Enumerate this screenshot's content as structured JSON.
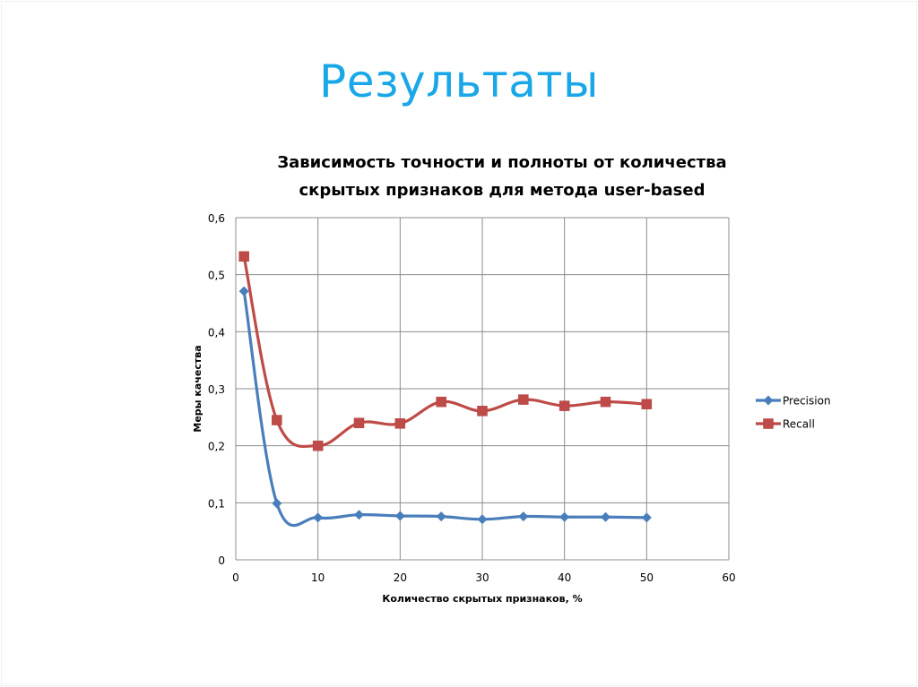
{
  "slide": {
    "title": "Результаты"
  },
  "chart_data": {
    "type": "line",
    "title": "Зависимость точности и полноты от количества скрытых признаков для метода user-based",
    "title_lines": [
      "Зависимость точности и полноты от количества",
      "скрытых признаков для метода user-based"
    ],
    "xlabel": "Количество скрытых признаков, %",
    "ylabel": "Меры качества",
    "xlim": [
      0,
      60
    ],
    "ylim": [
      0,
      0.6
    ],
    "x_ticks": [
      0,
      10,
      20,
      30,
      40,
      50,
      60
    ],
    "x_tick_labels": [
      "0",
      "10",
      "20",
      "30",
      "40",
      "50",
      "60"
    ],
    "y_ticks": [
      0,
      0.1,
      0.2,
      0.3,
      0.4,
      0.5,
      0.6
    ],
    "y_tick_labels": [
      "0",
      "0,1",
      "0,2",
      "0,3",
      "0,4",
      "0,5",
      "0,6"
    ],
    "grid": true,
    "legend_position": "right",
    "x": [
      1,
      5,
      10,
      15,
      20,
      25,
      30,
      35,
      40,
      45,
      50
    ],
    "series": [
      {
        "name": "Precision",
        "color": "#4a7ebb",
        "marker": "diamond",
        "values": [
          0.471,
          0.099,
          0.074,
          0.079,
          0.077,
          0.076,
          0.071,
          0.076,
          0.075,
          0.075,
          0.074
        ]
      },
      {
        "name": "Recall",
        "color": "#be4b48",
        "marker": "square",
        "values": [
          0.532,
          0.245,
          0.2,
          0.24,
          0.239,
          0.277,
          0.261,
          0.281,
          0.27,
          0.277,
          0.273
        ]
      }
    ]
  }
}
